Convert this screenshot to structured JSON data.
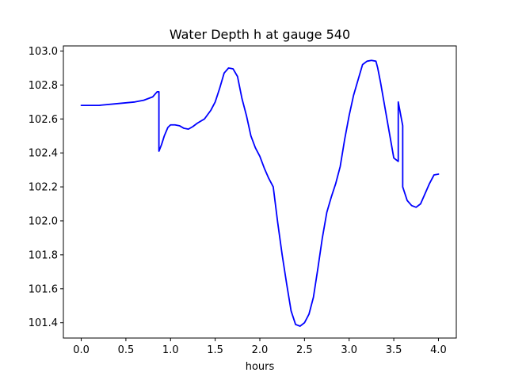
{
  "chart_data": {
    "type": "line",
    "title": "Water Depth h at gauge 540",
    "xlabel": "hours",
    "ylabel": "",
    "xlim": [
      -0.2,
      4.2
    ],
    "ylim": [
      101.31,
      103.03
    ],
    "grid": false,
    "xticks": [
      "0.0",
      "0.5",
      "1.0",
      "1.5",
      "2.0",
      "2.5",
      "3.0",
      "3.5",
      "4.0"
    ],
    "yticks": [
      "101.4",
      "101.6",
      "101.8",
      "102.0",
      "102.2",
      "102.4",
      "102.6",
      "102.8",
      "103.0"
    ],
    "series": [
      {
        "color": "#0000ff",
        "x": [
          0.0,
          0.2,
          0.4,
          0.6,
          0.7,
          0.8,
          0.85,
          0.87,
          0.87,
          0.9,
          0.93,
          0.97,
          1.0,
          1.05,
          1.1,
          1.15,
          1.2,
          1.25,
          1.3,
          1.38,
          1.45,
          1.5,
          1.55,
          1.6,
          1.65,
          1.7,
          1.75,
          1.8,
          1.85,
          1.9,
          1.95,
          2.0,
          2.05,
          2.1,
          2.15,
          2.2,
          2.25,
          2.3,
          2.35,
          2.4,
          2.45,
          2.5,
          2.53,
          2.55,
          2.6,
          2.65,
          2.7,
          2.75,
          2.8,
          2.85,
          2.9,
          2.95,
          3.0,
          3.05,
          3.1,
          3.15,
          3.2,
          3.25,
          3.3,
          3.32,
          3.35,
          3.4,
          3.45,
          3.5,
          3.55,
          3.55,
          3.6,
          3.6,
          3.65,
          3.7,
          3.75,
          3.8,
          3.85,
          3.9,
          3.95,
          4.0
        ],
        "y": [
          102.68,
          102.68,
          102.69,
          102.7,
          102.71,
          102.73,
          102.76,
          102.76,
          102.41,
          102.45,
          102.5,
          102.55,
          102.565,
          102.565,
          102.56,
          102.545,
          102.54,
          102.555,
          102.575,
          102.6,
          102.65,
          102.7,
          102.78,
          102.87,
          102.9,
          102.895,
          102.85,
          102.72,
          102.62,
          102.5,
          102.43,
          102.38,
          102.31,
          102.25,
          102.2,
          101.99,
          101.8,
          101.63,
          101.47,
          101.39,
          101.38,
          101.4,
          101.43,
          101.45,
          101.55,
          101.72,
          101.9,
          102.05,
          102.14,
          102.22,
          102.32,
          102.48,
          102.62,
          102.74,
          102.83,
          102.92,
          102.94,
          102.945,
          102.94,
          102.9,
          102.82,
          102.67,
          102.52,
          102.37,
          102.35,
          102.7,
          102.56,
          102.2,
          102.12,
          102.09,
          102.08,
          102.1,
          102.16,
          102.22,
          102.27,
          102.275
        ]
      }
    ]
  }
}
